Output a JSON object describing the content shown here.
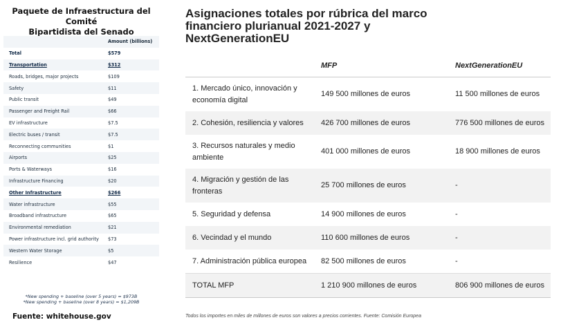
{
  "left_panel": {
    "title_line1": "Paquete de Infraestructura del Comité",
    "title_line2": "Bipartidista del Senado",
    "amount_header": "Amount (billions)",
    "rows": [
      {
        "label": "Total",
        "amount": "$579",
        "style": "bold"
      },
      {
        "label": "Transportation",
        "amount": "$312",
        "style": "section"
      },
      {
        "label": "Roads, bridges, major projects",
        "amount": "$109",
        "style": "normal"
      },
      {
        "label": "Safety",
        "amount": "$11",
        "style": "normal"
      },
      {
        "label": "Public transit",
        "amount": "$49",
        "style": "normal"
      },
      {
        "label": "Passenger and Freight Rail",
        "amount": "$66",
        "style": "normal"
      },
      {
        "label": "EV infrastructure",
        "amount": "$7.5",
        "style": "normal"
      },
      {
        "label": "Electric buses / transit",
        "amount": "$7.5",
        "style": "normal"
      },
      {
        "label": "Reconnecting communities",
        "amount": "$1",
        "style": "normal"
      },
      {
        "label": "Airports",
        "amount": "$25",
        "style": "normal"
      },
      {
        "label": "Ports & Waterways",
        "amount": "$16",
        "style": "normal"
      },
      {
        "label": "Infrastructure Financing",
        "amount": "$20",
        "style": "normal"
      },
      {
        "label": "Other Infrastructure",
        "amount": "$266",
        "style": "section"
      },
      {
        "label": "Water infrastructure",
        "amount": "$55",
        "style": "normal"
      },
      {
        "label": "Broadband infrastructure",
        "amount": "$65",
        "style": "normal"
      },
      {
        "label": "Environmental remediation",
        "amount": "$21",
        "style": "normal"
      },
      {
        "label": "Power infrastructure incl. grid authority",
        "amount": "$73",
        "style": "normal"
      },
      {
        "label": "Western Water Storage",
        "amount": "$5",
        "style": "normal"
      },
      {
        "label": "Resilience",
        "amount": "$47",
        "style": "normal"
      }
    ],
    "note1": "*New spending + baseline (over 5 years) = $973B",
    "note2": "*New spending + baseline (over 8 years) = $1,209B",
    "source": "Fuente: whitehouse.gov"
  },
  "right_panel": {
    "title": "Asignaciones totales por rúbrica del marco financiero plurianual 2021-2027 y NextGenerationEU",
    "col_mfp": "MFP",
    "col_ngeu": "NextGenerationEU",
    "rows": [
      {
        "label": "1. Mercado único, innovación y economía digital",
        "mfp": "149 500 millones de euros",
        "ngeu": "11 500 millones de euros",
        "tall": true
      },
      {
        "label": "2. Cohesión, resiliencia y valores",
        "mfp": "426 700 millones de euros",
        "ngeu": "776 500 millones de euros",
        "tall": false
      },
      {
        "label": "3. Recursos naturales y medio ambiente",
        "mfp": "401 000 millones de euros",
        "ngeu": "18 900 millones de euros",
        "tall": true
      },
      {
        "label": "4. Migración y gestión de las fronteras",
        "mfp": "25 700 millones de euros",
        "ngeu": "-",
        "tall": true
      },
      {
        "label": "5. Seguridad y defensa",
        "mfp": "14 900 millones de euros",
        "ngeu": "-",
        "tall": false
      },
      {
        "label": "6. Vecindad y el mundo",
        "mfp": "110 600 millones de euros",
        "ngeu": "-",
        "tall": false
      },
      {
        "label": "7. Administración pública europea",
        "mfp": "82 500 millones de euros",
        "ngeu": "-",
        "tall": false
      },
      {
        "label": "TOTAL MFP",
        "mfp": "1 210 900 millones de euros",
        "ngeu": "806 900 millones de euros",
        "tall": false
      }
    ],
    "footnote": "Todos los importes en miles de millones de euros son valores a precios corrientes. Fuente: Comisión Europea"
  }
}
